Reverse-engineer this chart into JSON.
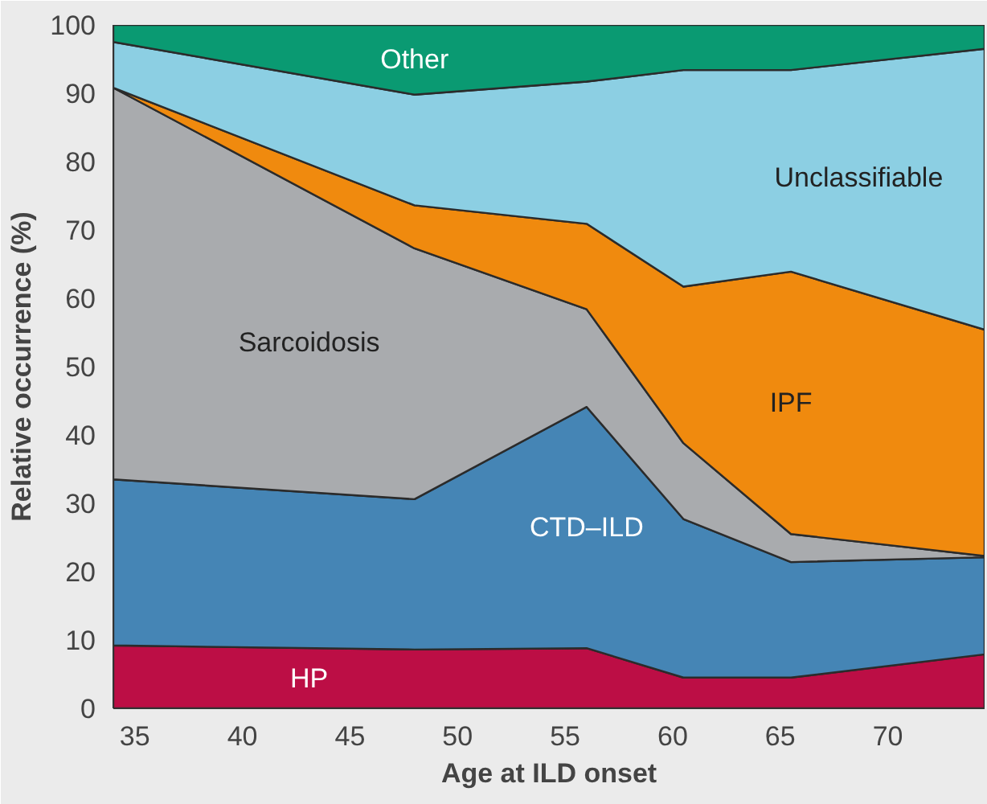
{
  "chart_data": {
    "type": "area",
    "stacked": true,
    "xlabel": "Age at ILD onset",
    "ylabel": "Relative occurrence (%)",
    "x": [
      34,
      48,
      56,
      60.5,
      65.5,
      74.5
    ],
    "xlim": [
      34,
      74.5
    ],
    "xticks": [
      35,
      40,
      45,
      50,
      55,
      60,
      65,
      70
    ],
    "ylim": [
      0,
      100
    ],
    "yticks": [
      0,
      10,
      20,
      30,
      40,
      50,
      60,
      70,
      80,
      90,
      100
    ],
    "series": [
      {
        "name": "HP",
        "color": "#bc0e45",
        "values": [
          9.2,
          8.6,
          8.8,
          4.5,
          4.5,
          7.9
        ]
      },
      {
        "name": "CTD–ILD",
        "color": "#4585b5",
        "values": [
          24.3,
          22.0,
          35.3,
          23.2,
          16.9,
          14.2
        ]
      },
      {
        "name": "Sarcoidosis",
        "color": "#a9abae",
        "values": [
          57.3,
          36.7,
          14.3,
          11.1,
          4.1,
          0.2
        ]
      },
      {
        "name": "IPF",
        "color": "#f08a0e",
        "values": [
          0,
          6.3,
          12.5,
          22.9,
          38.4,
          33.1
        ]
      },
      {
        "name": "Unclassifiable",
        "color": "#8ccfe3",
        "values": [
          6.7,
          16.2,
          20.8,
          31.7,
          29.5,
          41.1
        ]
      },
      {
        "name": "Other",
        "color": "#0a9a72",
        "values": [
          2.5,
          10.2,
          8.3,
          6.6,
          6.6,
          3.5
        ]
      }
    ]
  }
}
